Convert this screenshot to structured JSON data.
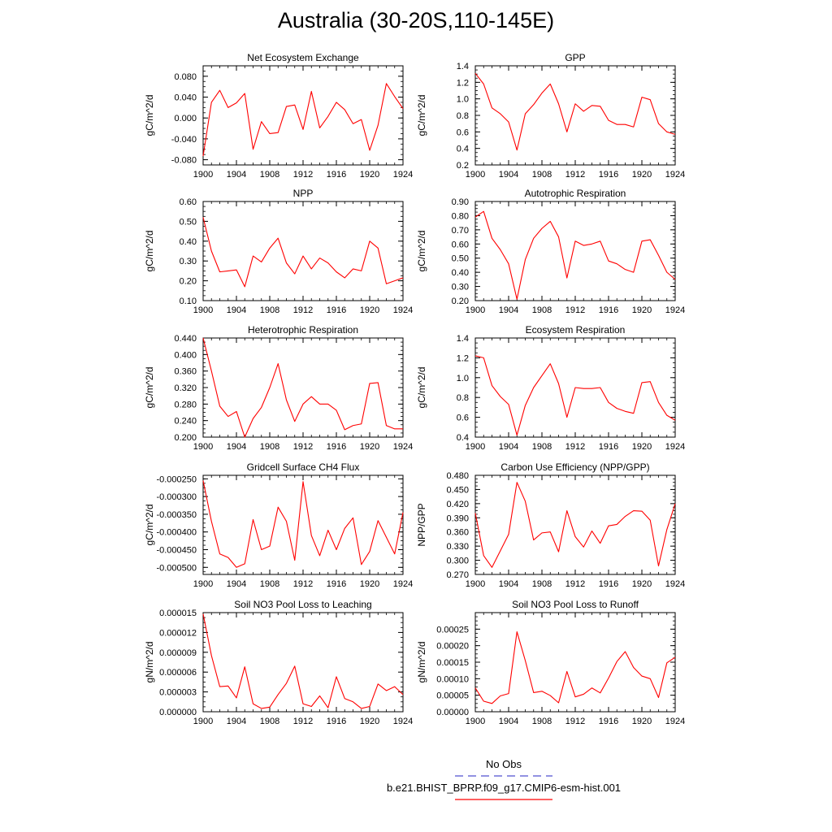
{
  "title": "Australia (30-20S,110-145E)",
  "legend": {
    "obs_label": "No Obs",
    "model_label": "b.e21.BHIST_BPRP.f09_g17.CMIP6-esm-hist.001",
    "obs_color": "#5050d0",
    "model_color": "#ff0000"
  },
  "chart_data": [
    {
      "type": "line",
      "title": "Net Ecosystem Exchange",
      "ylabel": "gC/m^2/d",
      "xlim": [
        1900,
        1924
      ],
      "ylim": [
        -0.09,
        0.1
      ],
      "xticks": [
        1900,
        1904,
        1908,
        1912,
        1916,
        1920,
        1924
      ],
      "yticks": [
        -0.08,
        -0.04,
        0.0,
        0.04,
        0.08
      ],
      "ytick_labels": [
        "-0.080",
        "-0.040",
        "0.000",
        "0.040",
        "0.080"
      ],
      "series": [
        {
          "color": "#ff0000",
          "x": [
            1900,
            1901,
            1902,
            1903,
            1904,
            1905,
            1906,
            1907,
            1908,
            1909,
            1910,
            1911,
            1912,
            1913,
            1914,
            1915,
            1916,
            1917,
            1918,
            1919,
            1920,
            1921,
            1922,
            1923,
            1924
          ],
          "values": [
            -0.073,
            0.03,
            0.053,
            0.02,
            0.029,
            0.047,
            -0.06,
            -0.007,
            -0.03,
            -0.028,
            0.022,
            0.025,
            -0.022,
            0.051,
            -0.019,
            0.003,
            0.03,
            0.016,
            -0.011,
            -0.003,
            -0.062,
            -0.014,
            0.066,
            0.041,
            0.018
          ]
        }
      ]
    },
    {
      "type": "line",
      "title": "GPP",
      "ylabel": "gC/m^2/d",
      "xlim": [
        1900,
        1924
      ],
      "ylim": [
        0.2,
        1.4
      ],
      "xticks": [
        1900,
        1904,
        1908,
        1912,
        1916,
        1920,
        1924
      ],
      "yticks": [
        0.2,
        0.4,
        0.6,
        0.8,
        1.0,
        1.2,
        1.4
      ],
      "ytick_labels": [
        "0.2",
        "0.4",
        "0.6",
        "0.8",
        "1.0",
        "1.2",
        "1.4"
      ],
      "series": [
        {
          "color": "#ff0000",
          "x": [
            1900,
            1901,
            1902,
            1903,
            1904,
            1905,
            1906,
            1907,
            1908,
            1909,
            1910,
            1911,
            1912,
            1913,
            1914,
            1915,
            1916,
            1917,
            1918,
            1919,
            1920,
            1921,
            1922,
            1923,
            1924
          ],
          "values": [
            1.31,
            1.18,
            0.89,
            0.82,
            0.72,
            0.38,
            0.82,
            0.93,
            1.07,
            1.18,
            0.94,
            0.6,
            0.94,
            0.85,
            0.92,
            0.91,
            0.74,
            0.69,
            0.69,
            0.66,
            1.02,
            0.99,
            0.7,
            0.6,
            0.57
          ]
        }
      ]
    },
    {
      "type": "line",
      "title": "NPP",
      "ylabel": "gC/m^2/d",
      "xlim": [
        1900,
        1924
      ],
      "ylim": [
        0.1,
        0.6
      ],
      "xticks": [
        1900,
        1904,
        1908,
        1912,
        1916,
        1920,
        1924
      ],
      "yticks": [
        0.1,
        0.2,
        0.3,
        0.4,
        0.5,
        0.6
      ],
      "ytick_labels": [
        "0.10",
        "0.20",
        "0.30",
        "0.40",
        "0.50",
        "0.60"
      ],
      "series": [
        {
          "color": "#ff0000",
          "x": [
            1900,
            1901,
            1902,
            1903,
            1904,
            1905,
            1906,
            1907,
            1908,
            1909,
            1910,
            1911,
            1912,
            1913,
            1914,
            1915,
            1916,
            1917,
            1918,
            1919,
            1920,
            1921,
            1922,
            1923,
            1924
          ],
          "values": [
            0.52,
            0.35,
            0.245,
            0.25,
            0.255,
            0.17,
            0.325,
            0.295,
            0.365,
            0.415,
            0.29,
            0.235,
            0.325,
            0.26,
            0.315,
            0.29,
            0.245,
            0.215,
            0.26,
            0.25,
            0.4,
            0.365,
            0.185,
            0.2,
            0.215
          ]
        }
      ]
    },
    {
      "type": "line",
      "title": "Autotrophic Respiration",
      "ylabel": "gC/m^2/d",
      "xlim": [
        1900,
        1924
      ],
      "ylim": [
        0.2,
        0.9
      ],
      "xticks": [
        1900,
        1904,
        1908,
        1912,
        1916,
        1920,
        1924
      ],
      "yticks": [
        0.2,
        0.3,
        0.4,
        0.5,
        0.6,
        0.7,
        0.8,
        0.9
      ],
      "ytick_labels": [
        "0.20",
        "0.30",
        "0.40",
        "0.50",
        "0.60",
        "0.70",
        "0.80",
        "0.90"
      ],
      "series": [
        {
          "color": "#ff0000",
          "x": [
            1900,
            1901,
            1902,
            1903,
            1904,
            1905,
            1906,
            1907,
            1908,
            1909,
            1910,
            1911,
            1912,
            1913,
            1914,
            1915,
            1916,
            1917,
            1918,
            1919,
            1920,
            1921,
            1922,
            1923,
            1924
          ],
          "values": [
            0.79,
            0.83,
            0.64,
            0.56,
            0.46,
            0.21,
            0.49,
            0.64,
            0.71,
            0.76,
            0.65,
            0.36,
            0.62,
            0.59,
            0.6,
            0.62,
            0.48,
            0.46,
            0.42,
            0.4,
            0.62,
            0.63,
            0.52,
            0.4,
            0.35
          ]
        }
      ]
    },
    {
      "type": "line",
      "title": "Heterotrophic Respiration",
      "ylabel": "gC/m^2/d",
      "xlim": [
        1900,
        1924
      ],
      "ylim": [
        0.2,
        0.44
      ],
      "xticks": [
        1900,
        1904,
        1908,
        1912,
        1916,
        1920,
        1924
      ],
      "yticks": [
        0.2,
        0.24,
        0.28,
        0.32,
        0.36,
        0.4,
        0.44
      ],
      "ytick_labels": [
        "0.200",
        "0.240",
        "0.280",
        "0.320",
        "0.360",
        "0.400",
        "0.440"
      ],
      "series": [
        {
          "color": "#ff0000",
          "x": [
            1900,
            1901,
            1902,
            1903,
            1904,
            1905,
            1906,
            1907,
            1908,
            1909,
            1910,
            1911,
            1912,
            1913,
            1914,
            1915,
            1916,
            1917,
            1918,
            1919,
            1920,
            1921,
            1922,
            1923,
            1924
          ],
          "values": [
            0.44,
            0.36,
            0.275,
            0.25,
            0.262,
            0.2,
            0.245,
            0.272,
            0.32,
            0.378,
            0.29,
            0.238,
            0.28,
            0.298,
            0.28,
            0.28,
            0.265,
            0.218,
            0.228,
            0.232,
            0.33,
            0.332,
            0.228,
            0.22,
            0.22
          ]
        }
      ]
    },
    {
      "type": "line",
      "title": "Ecosystem Respiration",
      "ylabel": "gC/m^2/d",
      "xlim": [
        1900,
        1924
      ],
      "ylim": [
        0.4,
        1.4
      ],
      "xticks": [
        1900,
        1904,
        1908,
        1912,
        1916,
        1920,
        1924
      ],
      "yticks": [
        0.4,
        0.6,
        0.8,
        1.0,
        1.2,
        1.4
      ],
      "ytick_labels": [
        "0.4",
        "0.6",
        "0.8",
        "1.0",
        "1.2",
        "1.4"
      ],
      "series": [
        {
          "color": "#ff0000",
          "x": [
            1900,
            1901,
            1902,
            1903,
            1904,
            1905,
            1906,
            1907,
            1908,
            1909,
            1910,
            1911,
            1912,
            1913,
            1914,
            1915,
            1916,
            1917,
            1918,
            1919,
            1920,
            1921,
            1922,
            1923,
            1924
          ],
          "values": [
            1.22,
            1.2,
            0.92,
            0.81,
            0.73,
            0.42,
            0.72,
            0.9,
            1.02,
            1.14,
            0.94,
            0.6,
            0.9,
            0.89,
            0.89,
            0.9,
            0.75,
            0.69,
            0.66,
            0.64,
            0.95,
            0.96,
            0.75,
            0.62,
            0.57
          ]
        }
      ]
    },
    {
      "type": "line",
      "title": "Gridcell Surface CH4 Flux",
      "ylabel": "gC/m^2/d",
      "xlim": [
        1900,
        1924
      ],
      "ylim": [
        -0.00052,
        -0.00024
      ],
      "xticks": [
        1900,
        1904,
        1908,
        1912,
        1916,
        1920,
        1924
      ],
      "yticks": [
        -0.0005,
        -0.00045,
        -0.0004,
        -0.00035,
        -0.0003,
        -0.00025
      ],
      "ytick_labels": [
        "-0.000500",
        "-0.000450",
        "-0.000400",
        "-0.000350",
        "-0.000300",
        "-0.000250"
      ],
      "series": [
        {
          "color": "#ff0000",
          "x": [
            1900,
            1901,
            1902,
            1903,
            1904,
            1905,
            1906,
            1907,
            1908,
            1909,
            1910,
            1911,
            1912,
            1913,
            1914,
            1915,
            1916,
            1917,
            1918,
            1919,
            1920,
            1921,
            1922,
            1923,
            1924
          ],
          "values": [
            -0.000255,
            -0.00037,
            -0.000462,
            -0.000472,
            -0.0005,
            -0.00049,
            -0.000365,
            -0.00045,
            -0.00044,
            -0.00033,
            -0.00037,
            -0.00048,
            -0.000258,
            -0.00041,
            -0.000467,
            -0.000395,
            -0.00045,
            -0.00039,
            -0.00036,
            -0.000492,
            -0.000455,
            -0.000368,
            -0.000415,
            -0.000462,
            -0.000345
          ]
        }
      ]
    },
    {
      "type": "line",
      "title": "Carbon Use Efficiency (NPP/GPP)",
      "ylabel": "NPP/GPP",
      "xlim": [
        1900,
        1924
      ],
      "ylim": [
        0.27,
        0.48
      ],
      "xticks": [
        1900,
        1904,
        1908,
        1912,
        1916,
        1920,
        1924
      ],
      "yticks": [
        0.27,
        0.3,
        0.33,
        0.36,
        0.39,
        0.42,
        0.45,
        0.48
      ],
      "ytick_labels": [
        "0.270",
        "0.300",
        "0.330",
        "0.360",
        "0.390",
        "0.420",
        "0.450",
        "0.480"
      ],
      "series": [
        {
          "color": "#ff0000",
          "x": [
            1900,
            1901,
            1902,
            1903,
            1904,
            1905,
            1906,
            1907,
            1908,
            1909,
            1910,
            1911,
            1912,
            1913,
            1914,
            1915,
            1916,
            1917,
            1918,
            1919,
            1920,
            1921,
            1922,
            1923,
            1924
          ],
          "values": [
            0.4,
            0.31,
            0.285,
            0.32,
            0.355,
            0.465,
            0.425,
            0.343,
            0.358,
            0.36,
            0.318,
            0.405,
            0.35,
            0.328,
            0.362,
            0.336,
            0.373,
            0.376,
            0.393,
            0.405,
            0.404,
            0.385,
            0.288,
            0.365,
            0.42
          ]
        }
      ]
    },
    {
      "type": "line",
      "title": "Soil NO3 Pool Loss to Leaching",
      "ylabel": "gN/m^2/d",
      "xlim": [
        1900,
        1924
      ],
      "ylim": [
        0.0,
        1.5e-05
      ],
      "xticks": [
        1900,
        1904,
        1908,
        1912,
        1916,
        1920,
        1924
      ],
      "yticks": [
        0.0,
        3e-06,
        6e-06,
        9e-06,
        1.2e-05,
        1.5e-05
      ],
      "ytick_labels": [
        "0.000000",
        "0.000003",
        "0.000006",
        "0.000009",
        "0.000012",
        "0.000015"
      ],
      "series": [
        {
          "color": "#ff0000",
          "x": [
            1900,
            1901,
            1902,
            1903,
            1904,
            1905,
            1906,
            1907,
            1908,
            1909,
            1910,
            1911,
            1912,
            1913,
            1914,
            1915,
            1916,
            1917,
            1918,
            1919,
            1920,
            1921,
            1922,
            1923,
            1924
          ],
          "values": [
            1.48e-05,
            8.5e-06,
            3.8e-06,
            3.9e-06,
            2.1e-06,
            6.8e-06,
            1.2e-06,
            5e-07,
            7e-07,
            2.6e-06,
            4.3e-06,
            6.9e-06,
            1.2e-06,
            8e-07,
            2.4e-06,
            6e-07,
            5.3e-06,
            2e-06,
            1.5e-06,
            5e-07,
            8e-07,
            4.2e-06,
            3.2e-06,
            3.8e-06,
            2.6e-06
          ]
        }
      ]
    },
    {
      "type": "line",
      "title": "Soil NO3 Pool Loss to Runoff",
      "ylabel": "gN/m^2/d",
      "xlim": [
        1900,
        1924
      ],
      "ylim": [
        0.0,
        0.0003
      ],
      "xticks": [
        1900,
        1904,
        1908,
        1912,
        1916,
        1920,
        1924
      ],
      "yticks": [
        0.0,
        5e-05,
        0.0001,
        0.00015,
        0.0002,
        0.00025
      ],
      "ytick_labels": [
        "0.00000",
        "0.00005",
        "0.00010",
        "0.00015",
        "0.00020",
        "0.00025"
      ],
      "series": [
        {
          "color": "#ff0000",
          "x": [
            1900,
            1901,
            1902,
            1903,
            1904,
            1905,
            1906,
            1907,
            1908,
            1909,
            1910,
            1911,
            1912,
            1913,
            1914,
            1915,
            1916,
            1917,
            1918,
            1919,
            1920,
            1921,
            1922,
            1923,
            1924
          ],
          "values": [
            7.2e-05,
            3.2e-05,
            2.5e-05,
            4.8e-05,
            5.5e-05,
            0.000242,
            0.000155,
            5.8e-05,
            6.2e-05,
            4.9e-05,
            2.7e-05,
            0.000122,
            4.5e-05,
            5.3e-05,
            7.2e-05,
            5.7e-05,
            0.000102,
            0.000152,
            0.000182,
            0.000134,
            0.000108,
            0.0001,
            4.3e-05,
            0.000148,
            0.000165
          ]
        }
      ]
    }
  ]
}
